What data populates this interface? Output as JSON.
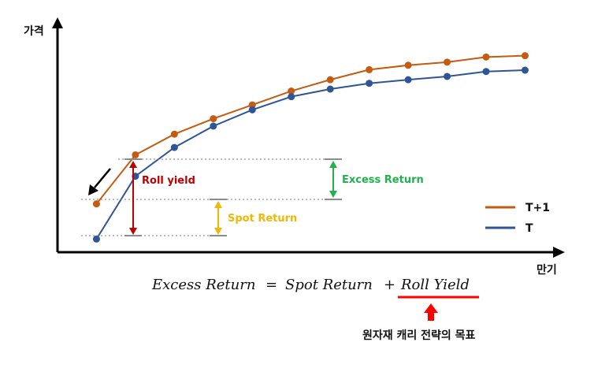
{
  "axes": {
    "y_label": "가격",
    "x_label": "만기"
  },
  "chart_data": {
    "type": "line",
    "x": [
      1,
      2,
      3,
      4,
      5,
      6,
      7,
      8,
      9,
      10,
      11,
      12
    ],
    "series": [
      {
        "name": "T+1",
        "color": "#c55a11",
        "values": [
          21.4,
          51.2,
          63.8,
          73.2,
          81.6,
          90.0,
          96.9,
          103.0,
          105.7,
          107.6,
          110.7,
          111.5
        ]
      },
      {
        "name": "T",
        "color": "#2f5597",
        "values": [
          0,
          38.2,
          55.7,
          68.7,
          78.6,
          86.6,
          91.2,
          94.7,
          96.9,
          98.9,
          101.9,
          102.7
        ]
      }
    ],
    "xlim": [
      0,
      12.8
    ],
    "ylim": [
      -8,
      131
    ],
    "legend_position": "right"
  },
  "annotations": {
    "roll_yield": {
      "label": "Roll yield",
      "color": "#c00000"
    },
    "spot_return": {
      "label": "Spot Return",
      "color": "#f2b705"
    },
    "excess_return": {
      "label": "Excess Return",
      "color": "#22b14c"
    }
  },
  "formula": {
    "lhs": "Excess Return",
    "equals": "=",
    "term1": "Spot Return",
    "plus": "+",
    "term2": "Roll Yield",
    "underline_color": "#ff0000"
  },
  "note": {
    "text": "원자재 캐리 전략의 목표",
    "arrow_color": "#ff0000"
  }
}
